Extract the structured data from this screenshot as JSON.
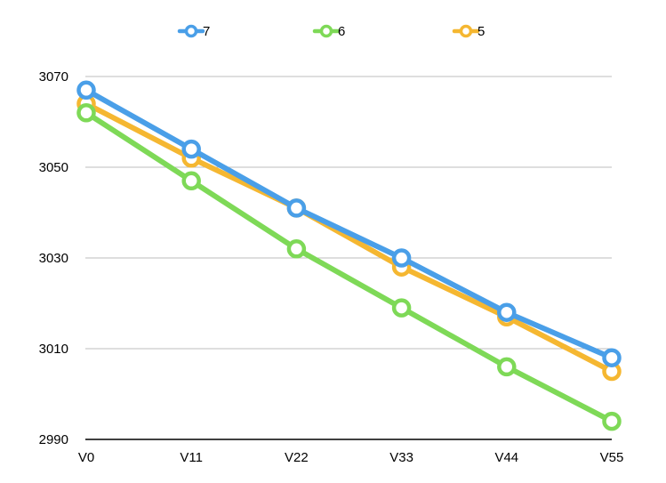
{
  "chart_data": {
    "type": "line",
    "categories": [
      "V0",
      "V11",
      "V22",
      "V33",
      "V44",
      "V55"
    ],
    "series": [
      {
        "name": "7",
        "color": "#4A9FE8",
        "values": [
          3067,
          3054,
          3041,
          3030,
          3018,
          3008
        ]
      },
      {
        "name": "6",
        "color": "#7ED957",
        "values": [
          3062,
          3047,
          3032,
          3019,
          3006,
          2994
        ]
      },
      {
        "name": "5",
        "color": "#F5B731",
        "values": [
          3064,
          3052,
          3041,
          3028,
          3017,
          3005
        ]
      }
    ],
    "y_ticks": [
      "2990",
      "3010",
      "3030",
      "3050",
      "3070"
    ],
    "ylim": [
      2990,
      3070
    ],
    "grid": true,
    "legend": "top",
    "title": "",
    "xlabel": "",
    "ylabel": ""
  }
}
